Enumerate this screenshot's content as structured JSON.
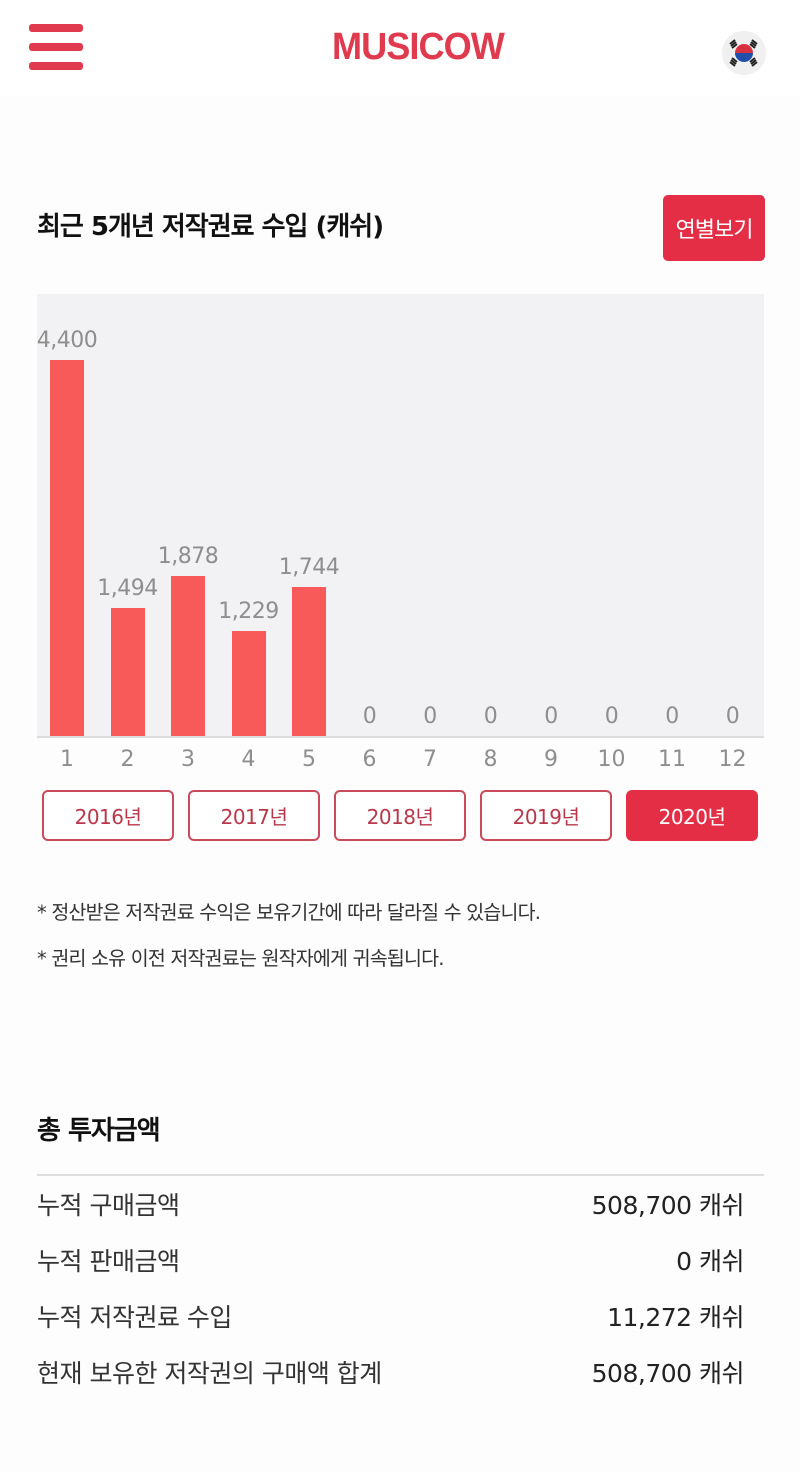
{
  "header": {
    "logo": "MUSICOW",
    "menu_icon": "hamburger-menu-icon",
    "language_icon": "korea-flag-icon"
  },
  "royalty_section": {
    "title": "최근 5개년 저작권료 수입 (캐쉬)",
    "yearly_button": "연별보기",
    "year_tabs": [
      {
        "label": "2016년",
        "active": false
      },
      {
        "label": "2017년",
        "active": false
      },
      {
        "label": "2018년",
        "active": false
      },
      {
        "label": "2019년",
        "active": false
      },
      {
        "label": "2020년",
        "active": true
      }
    ],
    "notes": [
      "* 정산받은 저작권료 수익은 보유기간에 따라 달라질 수 있습니다.",
      "* 권리 소유 이전 저작권료는 원작자에게 귀속됩니다."
    ]
  },
  "chart_data": {
    "type": "bar",
    "title": "최근 5개년 저작권료 수입 (캐쉬)",
    "subtitle": "2020년",
    "xlabel": "",
    "ylabel": "",
    "categories": [
      "1",
      "2",
      "3",
      "4",
      "5",
      "6",
      "7",
      "8",
      "9",
      "10",
      "11",
      "12"
    ],
    "values": [
      4400,
      1494,
      1878,
      1229,
      1744,
      0,
      0,
      0,
      0,
      0,
      0,
      0
    ],
    "value_labels": [
      "4,400",
      "1,494",
      "1,878",
      "1,229",
      "1,744",
      "0",
      "0",
      "0",
      "0",
      "0",
      "0",
      "0"
    ],
    "ylim": [
      0,
      4400
    ],
    "grid": false,
    "legend": "none",
    "bar_color": "#f85a5a"
  },
  "summary": {
    "title": "총 투자금액",
    "rows": [
      {
        "label": "누적 구매금액",
        "value": "508,700 캐쉬"
      },
      {
        "label": "누적 판매금액",
        "value": "0 캐쉬"
      },
      {
        "label": "누적 저작권료 수입",
        "value": "11,272 캐쉬"
      },
      {
        "label": "현재 보유한 저작권의 구매액 합계",
        "value": "508,700 캐쉬"
      }
    ]
  },
  "colors": {
    "brand": "#e03a4e",
    "button_active": "#e42e46",
    "bar": "#f85a5a",
    "chart_bg": "#f2f2f4"
  }
}
